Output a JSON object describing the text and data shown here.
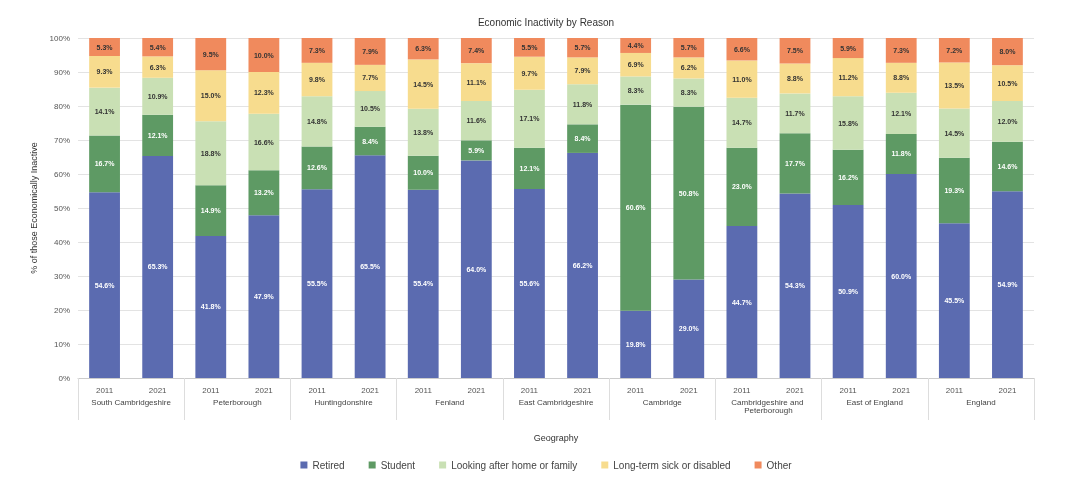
{
  "chart_data": {
    "type": "bar",
    "stacked": true,
    "title": "Economic Inactivity by Reason",
    "xlabel": "Geography",
    "ylabel": "% of those Economically Inactive",
    "categories": [
      "2011",
      "2021",
      "2011",
      "2021",
      "2011",
      "2021",
      "2011",
      "2021",
      "2011",
      "2021",
      "2011",
      "2021",
      "2011",
      "2021",
      "2011",
      "2021",
      "2011",
      "2021"
    ],
    "annotations": [
      "South Cambridgeshire",
      "Peterborough",
      "Huntingdonshire",
      "Fenland",
      "East Cambridgeshire",
      "Cambridge",
      "Cambridgeshire and Peterborough",
      "East of England",
      "England"
    ],
    "series": [
      {
        "name": "Retired",
        "color": "#5b6bb0",
        "values": [
          54.6,
          65.3,
          41.8,
          47.9,
          55.5,
          65.5,
          55.4,
          64.0,
          55.6,
          66.2,
          19.8,
          29.0,
          44.7,
          54.3,
          50.9,
          60.0,
          45.5,
          54.9
        ],
        "value_labels": [
          "54.6%",
          "65.3%",
          "41.8%",
          "47.9%",
          "55.5%",
          "65.5%",
          "55.4%",
          "64.0%",
          "55.6%",
          "66.2%",
          "19.8%",
          "29.0%",
          "44.7%",
          "54.3%",
          "50.9%",
          "60.0%",
          "45.5%",
          "54.9%"
        ]
      },
      {
        "name": "Student",
        "color": "#5e9a64",
        "values": [
          16.7,
          12.1,
          14.9,
          13.2,
          12.6,
          8.4,
          10.0,
          5.9,
          12.1,
          8.4,
          60.6,
          50.8,
          23.0,
          17.7,
          16.2,
          11.8,
          19.3,
          14.6
        ],
        "value_labels": [
          "16.7%",
          "12.1%",
          "14.9%",
          "13.2%",
          "12.6%",
          "8.4%",
          "10.0%",
          "5.9%",
          "12.1%",
          "8.4%",
          "60.6%",
          "50.8%",
          "23.0%",
          "17.7%",
          "16.2%",
          "11.8%",
          "19.3%",
          "14.6%"
        ]
      },
      {
        "name": "Looking after home or family",
        "color": "#c9e0b4",
        "values": [
          14.1,
          10.9,
          18.8,
          16.6,
          14.8,
          10.5,
          13.8,
          11.6,
          17.1,
          11.8,
          8.3,
          8.3,
          14.7,
          11.7,
          15.8,
          12.1,
          14.5,
          12.0
        ],
        "value_labels": [
          "14.1%",
          "10.9%",
          "18.8%",
          "16.6%",
          "14.8%",
          "10.5%",
          "13.8%",
          "11.6%",
          "17.1%",
          "11.8%",
          "8.3%",
          "8.3%",
          "14.7%",
          "11.7%",
          "15.8%",
          "12.1%",
          "14.5%",
          "12.0%"
        ]
      },
      {
        "name": "Long-term sick or disabled",
        "color": "#f7dc8e",
        "values": [
          9.3,
          6.3,
          15.0,
          12.3,
          9.8,
          7.7,
          14.5,
          11.1,
          9.7,
          7.9,
          6.9,
          6.2,
          11.0,
          8.8,
          11.2,
          8.8,
          13.5,
          10.5
        ],
        "value_labels": [
          "9.3%",
          "6.3%",
          "15.0%",
          "12.3%",
          "9.8%",
          "7.7%",
          "14.5%",
          "11.1%",
          "9.7%",
          "7.9%",
          "6.9%",
          "6.2%",
          "11.0%",
          "8.8%",
          "11.2%",
          "8.8%",
          "13.5%",
          "10.5%"
        ]
      },
      {
        "name": "Other",
        "color": "#f08a5d",
        "values": [
          5.3,
          5.4,
          9.5,
          10.0,
          7.3,
          7.9,
          6.3,
          7.4,
          5.5,
          5.7,
          4.4,
          5.7,
          6.6,
          7.5,
          5.9,
          7.3,
          7.2,
          8.0
        ],
        "value_labels": [
          "5.3%",
          "5.4%",
          "9.5%",
          "10.0%",
          "7.3%",
          "7.9%",
          "6.3%",
          "7.4%",
          "5.5%",
          "5.7%",
          "4.4%",
          "5.7%",
          "6.6%",
          "7.5%",
          "5.9%",
          "7.3%",
          "7.2%",
          "8.0%"
        ]
      }
    ],
    "ylim": [
      0,
      100
    ],
    "yticks": [
      {
        "value": 0,
        "label": "0%"
      },
      {
        "value": 10,
        "label": "10%"
      },
      {
        "value": 20,
        "label": "20%"
      },
      {
        "value": 30,
        "label": "30%"
      },
      {
        "value": 40,
        "label": "40%"
      },
      {
        "value": 50,
        "label": "50%"
      },
      {
        "value": 60,
        "label": "60%"
      },
      {
        "value": 70,
        "label": "70%"
      },
      {
        "value": 80,
        "label": "80%"
      },
      {
        "value": 90,
        "label": "90%"
      },
      {
        "value": 100,
        "label": "100%"
      }
    ],
    "grid": "y",
    "legend": "bottom"
  }
}
